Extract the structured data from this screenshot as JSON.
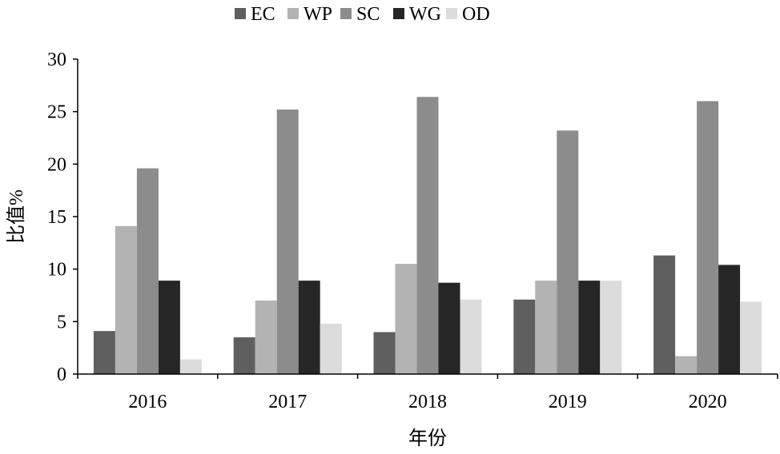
{
  "chart_data": {
    "type": "bar",
    "title": "",
    "xlabel": "年份",
    "ylabel": "比值%",
    "categories": [
      "2016",
      "2017",
      "2018",
      "2019",
      "2020"
    ],
    "ylim": [
      0,
      30
    ],
    "yticks": [
      "0",
      "5",
      "10",
      "15",
      "20",
      "25",
      "30"
    ],
    "grid": false,
    "legend_position": "top-center",
    "series": [
      {
        "name": "EC",
        "color": "#5f5f5f",
        "values": [
          4.1,
          3.5,
          4.0,
          7.1,
          11.3
        ]
      },
      {
        "name": "WP",
        "color": "#b3b3b3",
        "values": [
          14.1,
          7.0,
          10.5,
          8.9,
          1.7
        ]
      },
      {
        "name": "SC",
        "color": "#8c8c8c",
        "values": [
          19.6,
          25.2,
          26.4,
          23.2,
          26.0
        ]
      },
      {
        "name": "WG",
        "color": "#262626",
        "values": [
          8.9,
          8.9,
          8.7,
          8.9,
          10.4
        ]
      },
      {
        "name": "OD",
        "color": "#dcdcdc",
        "values": [
          1.4,
          4.8,
          7.1,
          8.9,
          6.9
        ]
      }
    ]
  }
}
